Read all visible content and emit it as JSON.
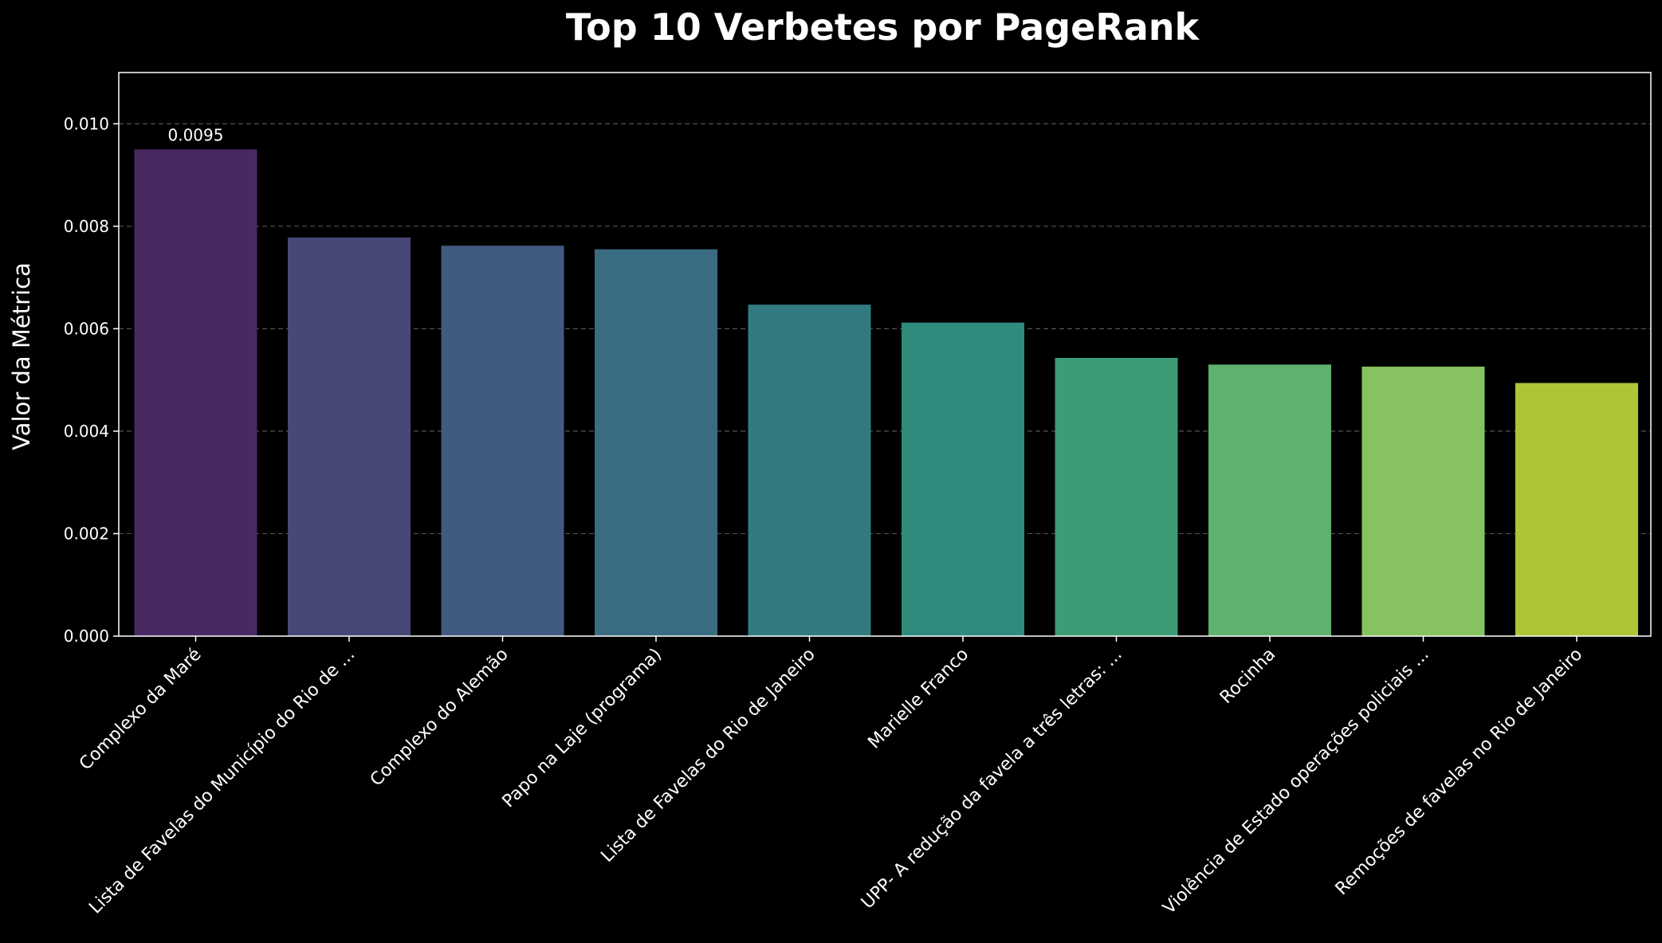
{
  "chart_data": {
    "type": "bar",
    "title": "Top 10 Verbetes por PageRank",
    "xlabel": "",
    "ylabel": "Valor da Métrica",
    "ylim": [
      0,
      0.011
    ],
    "yticks": [
      "0.000",
      "0.002",
      "0.004",
      "0.006",
      "0.008",
      "0.010"
    ],
    "ytick_values": [
      0,
      0.002,
      0.004,
      0.006,
      0.008,
      0.01
    ],
    "grid": "y-dashed",
    "legend": "none",
    "categories": [
      "Complexo da Maré",
      "Lista de Favelas do Município do Rio de ...",
      "Complexo do Alemão",
      "Papo na Laje (programa)",
      "Lista de Favelas do Rio de Janeiro",
      "Marielle Franco",
      "UPP- A redução da favela a três letras: ...",
      "Rocinha",
      "Violência de Estado operações policiais ...",
      "Remoções de favelas no Rio de Janeiro"
    ],
    "values": [
      0.0095,
      0.00778,
      0.00762,
      0.00755,
      0.00647,
      0.00612,
      0.00543,
      0.0053,
      0.00526,
      0.00494
    ],
    "data_labels": [
      "0.0095",
      "",
      "",
      "",
      "",
      "",
      "",
      "",
      "",
      ""
    ],
    "colors": [
      "#482a63",
      "#484878",
      "#415a80",
      "#3a6c82",
      "#317b80",
      "#2f8b7c",
      "#3c9c75",
      "#5fb26e",
      "#86c25f",
      "#b0c536"
    ],
    "background": "#000000",
    "text_color": "#ffffff",
    "grid_color": "#555555"
  }
}
